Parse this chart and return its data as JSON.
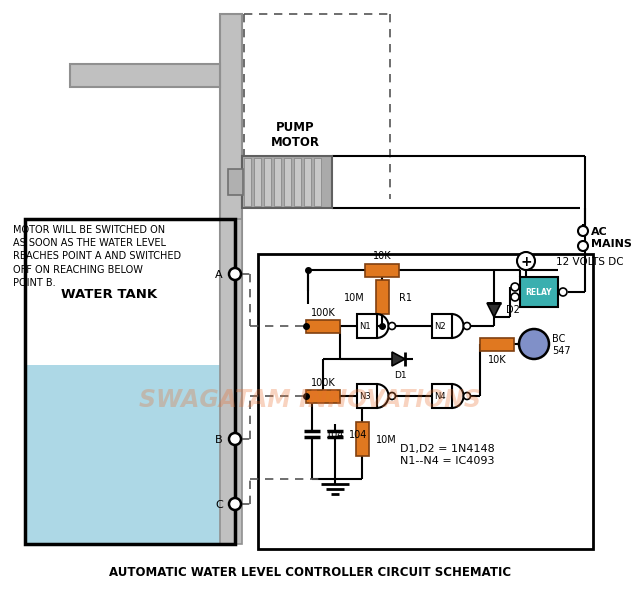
{
  "title": "AUTOMATIC WATER LEVEL CONTROLLER CIRCUIT SCHEMATIC",
  "title_fontsize": 8.5,
  "bg_color": "#ffffff",
  "watermark_color": "#e87030",
  "watermark_alpha": 0.3,
  "watermark_text": "SWAGATAM INNOVATIONS",
  "left_text": "MOTOR WILL BE SWITCHED ON\nAS SOON AS THE WATER LEVEL\nREACHES POINT A AND SWITCHED\nOFF ON REACHING BELOW\nPOINT B.",
  "pump_label": "PUMP\nMOTOR",
  "ac_label": "AC\nMAINS",
  "tank_label": "WATER TANK",
  "dc_label": "12 VOLTS DC",
  "info_label": "D1,D2 = 1N4148\nN1--N4 = IC4093",
  "resistor_fill": "#e07820",
  "resistor_edge": "#804010",
  "relay_fill": "#3aafaf",
  "pipe_fill": "#c0c0c0",
  "pipe_edge": "#909090",
  "motor_fill": "#aaaaaa",
  "motor_fin": "#c8c8c8",
  "bc547_fill": "#8888cc",
  "tank_water": "#add8e6",
  "dashed_color": "#555555"
}
